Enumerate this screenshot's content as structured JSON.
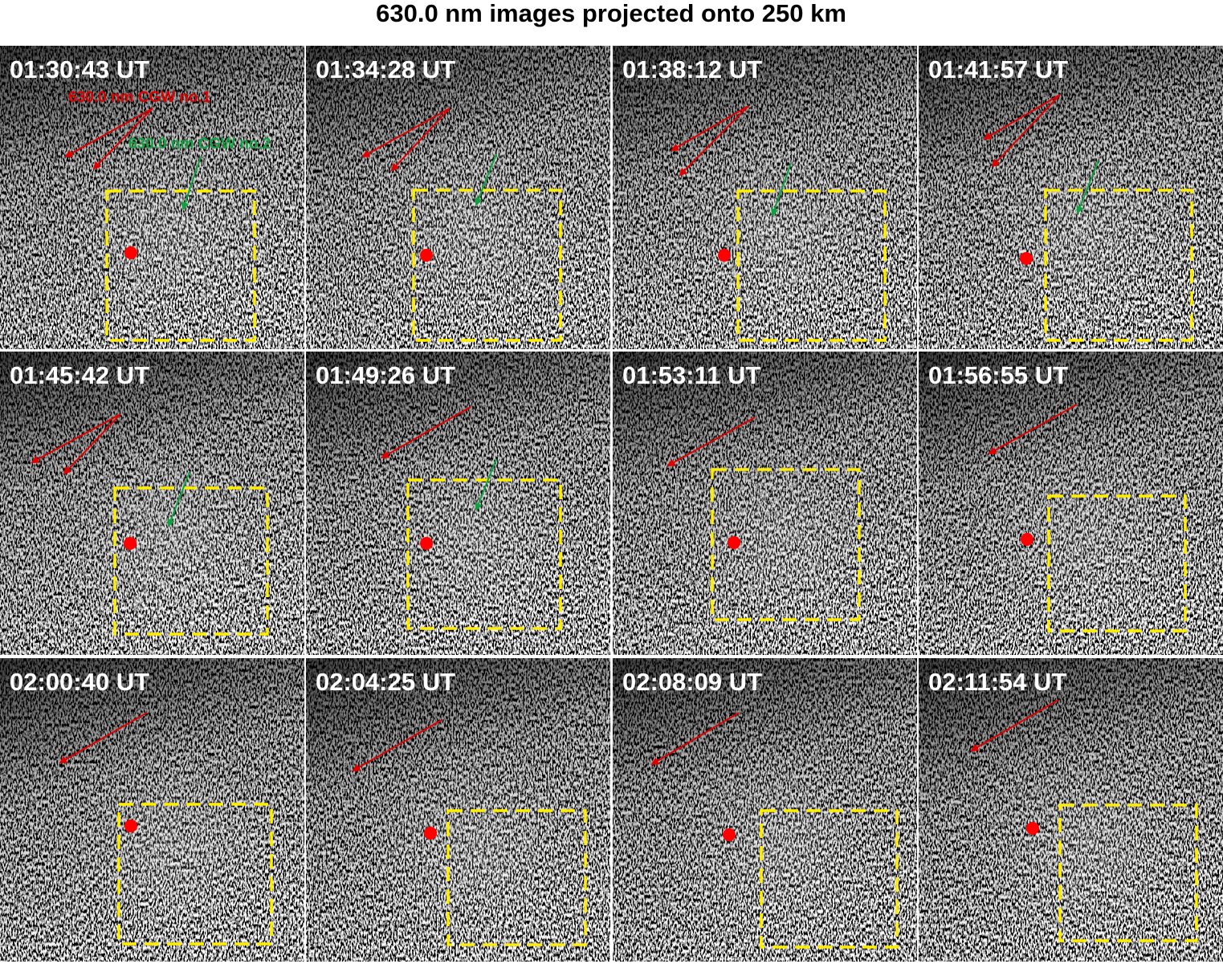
{
  "title": "630.0 nm images projected onto 250 km",
  "panels": [
    {
      "time": "01:30:43 UT",
      "annotations": [
        "630.0 nm CGW no.1",
        "630.0 nm CGW no.2"
      ]
    },
    {
      "time": "01:34:28 UT"
    },
    {
      "time": "01:38:12 UT"
    },
    {
      "time": "01:41:57 UT"
    },
    {
      "time": "01:45:42 UT"
    },
    {
      "time": "01:49:26 UT"
    },
    {
      "time": "01:53:11 UT"
    },
    {
      "time": "01:56:55 UT"
    },
    {
      "time": "02:00:40 UT"
    },
    {
      "time": "02:04:25 UT"
    },
    {
      "time": "02:08:09 UT"
    },
    {
      "time": "02:11:54 UT"
    }
  ]
}
